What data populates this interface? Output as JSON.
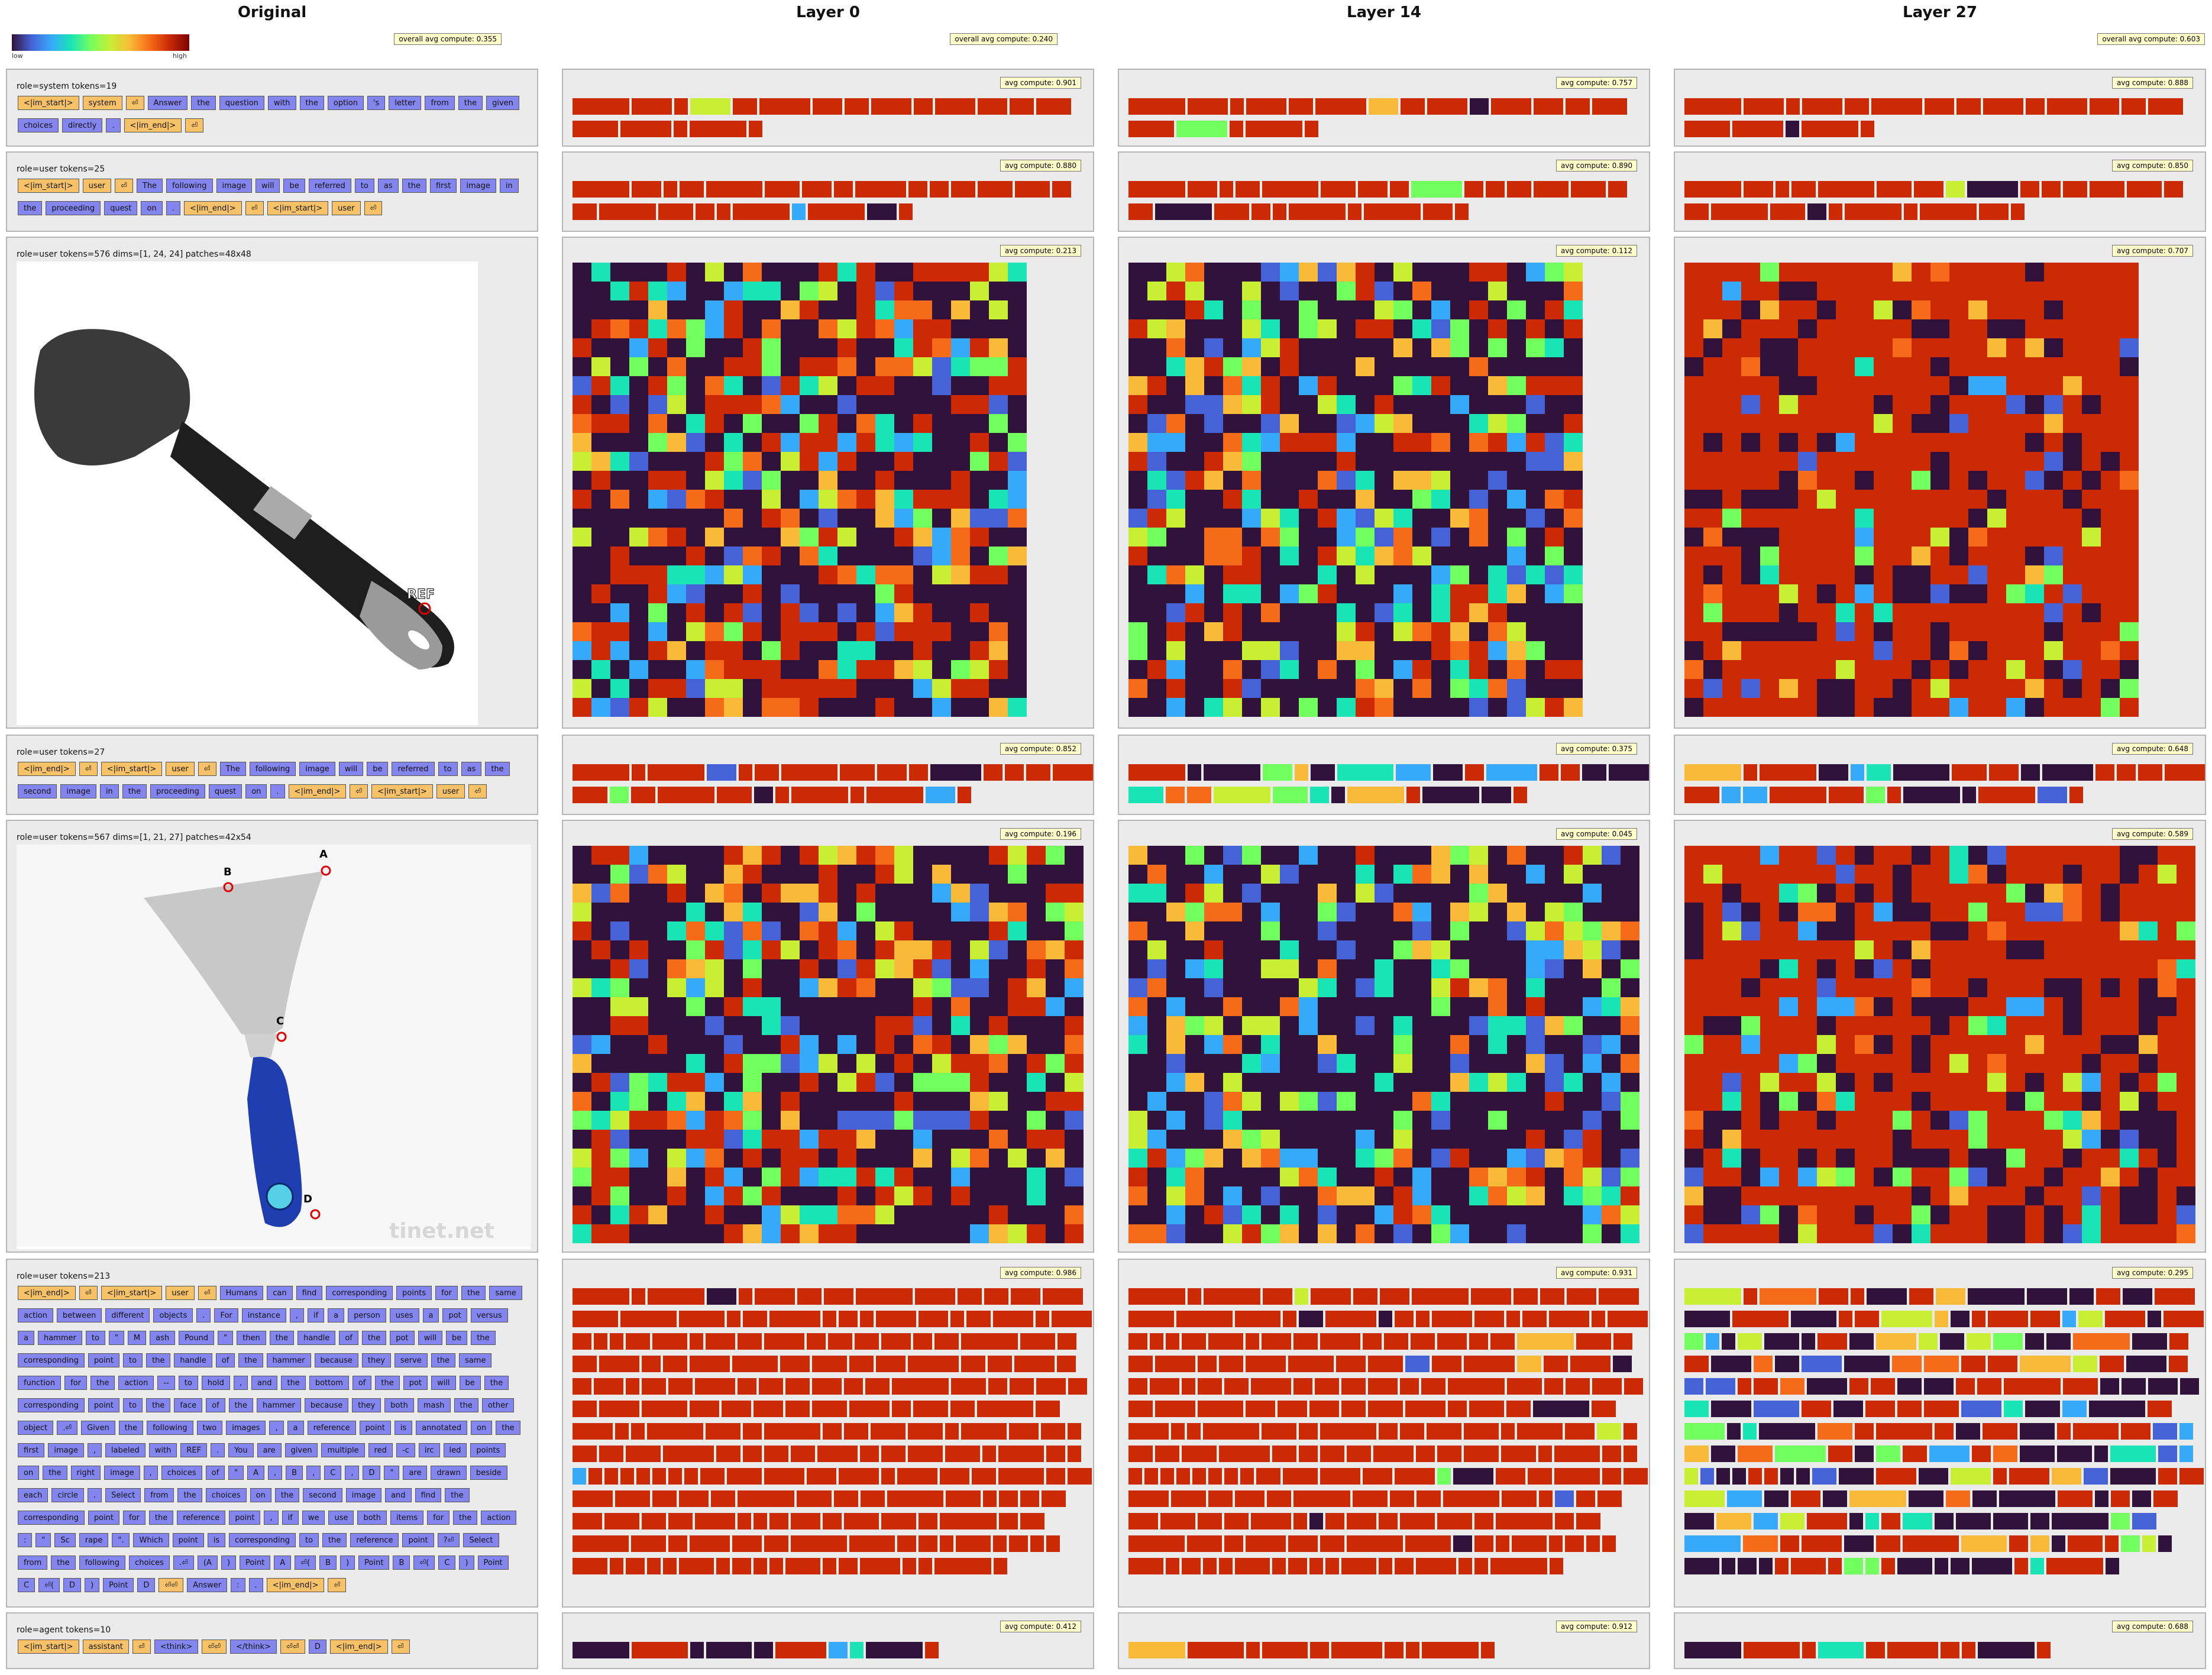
{
  "columns": [
    "Original",
    "Layer 0",
    "Layer 14",
    "Layer 27"
  ],
  "colorbar": {
    "low": "low",
    "high": "high"
  },
  "overall": [
    "overall avg compute: 0.355",
    "overall avg compute: 0.240",
    "overall avg compute: 0.603"
  ],
  "colors": {
    "dark": "#30123b",
    "red": "#cb2a04",
    "blue": "#4662d7",
    "sky": "#36aaf9",
    "teal": "#1ae4b6",
    "lime": "#72fe5e",
    "yellow": "#c8ef34",
    "orange": "#f66b19",
    "amber": "#faba39"
  },
  "rows": [
    {
      "header": "role=system  tokens=19",
      "tokens": [
        "<|im_start|>",
        "system",
        "⏎",
        "Answer",
        "the",
        "question",
        "with",
        "the",
        "option",
        "'s",
        "letter",
        "from",
        "the",
        "given",
        "choices",
        "directly",
        ".",
        "<|im_end|>",
        "⏎"
      ],
      "badges": [
        "avg compute: 0.901",
        "avg compute: 0.757",
        "avg compute: 0.888"
      ]
    },
    {
      "header": "role=user  tokens=25",
      "tokens": [
        "<|im_start|>",
        "user",
        "⏎",
        "The",
        "following",
        "image",
        "will",
        "be",
        "referred",
        "to",
        "as",
        "the",
        "first",
        "image",
        "in",
        "the",
        "proceeding",
        "quest",
        "on",
        ".",
        "<|im_end|>",
        "⏎",
        "<|im_start|>",
        "user",
        "⏎"
      ],
      "badges": [
        "avg compute: 0.880",
        "avg compute: 0.890",
        "avg compute: 0.850"
      ]
    },
    {
      "header": "role=user  tokens=576  dims=[1, 24, 24]  patches=48x48",
      "image": {
        "name": "spatula",
        "label": "REF"
      },
      "badges": [
        "avg compute: 0.213",
        "avg compute: 0.112",
        "avg compute: 0.707"
      ]
    },
    {
      "header": "role=user  tokens=27",
      "tokens": [
        "<|im_end|>",
        "⏎",
        "<|im_start|>",
        "user",
        "⏎",
        "The",
        "following",
        "image",
        "will",
        "be",
        "referred",
        "to",
        "as",
        "the",
        "second",
        "image",
        "in",
        "the",
        "proceeding",
        "quest",
        "on",
        ".",
        "<|im_end|>",
        "⏎",
        "<|im_start|>",
        "user",
        "⏎"
      ],
      "badges": [
        "avg compute: 0.852",
        "avg compute: 0.375",
        "avg compute: 0.648"
      ]
    },
    {
      "header": "role=user  tokens=567  dims=[1, 21, 27]  patches=42x54",
      "image": {
        "name": "scraper",
        "labels": [
          "A",
          "B",
          "C",
          "D"
        ],
        "watermark": "tinet.net"
      },
      "badges": [
        "avg compute: 0.196",
        "avg compute: 0.045",
        "avg compute: 0.589"
      ]
    },
    {
      "header": "role=user  tokens=213",
      "tokens": [
        "<|im_end|>",
        "⏎",
        "<|im_start|>",
        "user",
        "⏎",
        "Humans",
        "can",
        "find",
        "corresponding",
        "points",
        "for",
        "the",
        "same",
        "action",
        "between",
        "different",
        "objects",
        ".",
        "For",
        "instance",
        ",",
        "if",
        "a",
        "person",
        "uses",
        "a",
        "pot",
        "versus",
        "a",
        "hammer",
        "to",
        "\"",
        "M",
        "ash",
        "Pound",
        "\"",
        "then",
        "the",
        "handle",
        "of",
        "the",
        "pot",
        "will",
        "be",
        "the",
        "corresponding",
        "point",
        "to",
        "the",
        "handle",
        "of",
        "the",
        "hammer",
        "because",
        "they",
        "serve",
        "the",
        "same",
        "function",
        "for",
        "the",
        "action",
        "--",
        "to",
        "hold",
        ",",
        "and",
        "the",
        "bottom",
        "of",
        "the",
        "pot",
        "will",
        "be",
        "the",
        "corresponding",
        "point",
        "to",
        "the",
        "face",
        "of",
        "the",
        "hammer",
        "because",
        "they",
        "both",
        "mash",
        "the",
        "other",
        "object",
        ".⏎",
        "Given",
        "the",
        "following",
        "two",
        "images",
        ",",
        "a",
        "reference",
        "point",
        "is",
        "annotated",
        "on",
        "the",
        "first",
        "image",
        ",",
        "labeled",
        "with",
        "REF",
        ".",
        "You",
        "are",
        "given",
        "multiple",
        "red",
        "-c",
        "irc",
        "led",
        "points",
        "on",
        "the",
        "right",
        "image",
        ",",
        "choices",
        "of",
        "\"",
        "A",
        ",",
        "B",
        ",",
        "C",
        ",",
        "D",
        "\"",
        "are",
        "drawn",
        "beside",
        "each",
        "circle",
        ".",
        "Select",
        "from",
        "the",
        "choices",
        "on",
        "the",
        "second",
        "image",
        "and",
        "find",
        "the",
        "corresponding",
        "point",
        "for",
        "the",
        "reference",
        "point",
        ",",
        "if",
        "we",
        "use",
        "both",
        "items",
        "for",
        "the",
        "action",
        ":",
        "\"",
        "Sc",
        "rape",
        "\".",
        "Which",
        "point",
        "is",
        "corresponding",
        "to",
        "the",
        "reference",
        "point",
        "?⏎",
        "Select",
        "from",
        "the",
        "following",
        "choices",
        ".⏎",
        "(A",
        ")",
        "Point",
        "A",
        "⏎(",
        "B",
        ")",
        "Point",
        "B",
        "⏎(",
        "C",
        ")",
        "Point",
        "C",
        "⏎(",
        "D",
        ")",
        "Point",
        "D",
        "⏎⏎",
        "Answer",
        ":",
        ".",
        "<|im_end|>",
        "⏎"
      ],
      "badges": [
        "avg compute: 0.986",
        "avg compute: 0.931",
        "avg compute: 0.295"
      ]
    },
    {
      "header": "role=agent  tokens=10",
      "tokens": [
        "<|im_start|>",
        "assistant",
        "⏎",
        "<think>",
        "⏎⏎",
        "</think>",
        "⏎⏎",
        "D",
        "<|im_end|>",
        "⏎"
      ],
      "badges": [
        "avg compute: 0.412",
        "avg compute: 0.912",
        "avg compute: 0.688"
      ]
    }
  ]
}
